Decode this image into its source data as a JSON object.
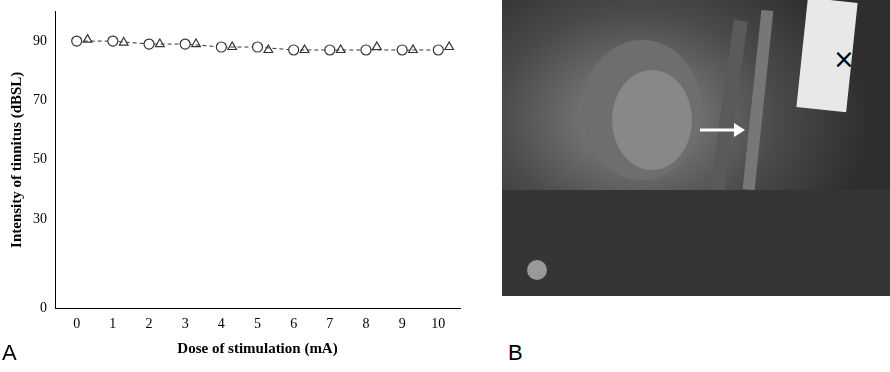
{
  "chart_data": {
    "type": "scatter",
    "panel_label": "A",
    "x_label": "Dose of stimulation (mA)",
    "y_label": "Intensity of tinnitus (dBSL)",
    "series": [
      {
        "marker": "circle",
        "line_style": "dashed",
        "color": "#333333",
        "x": [
          0,
          1,
          2,
          3,
          4,
          5,
          6,
          7,
          8,
          9,
          10
        ],
        "values": [
          90,
          90,
          89,
          89,
          88,
          88,
          87,
          87,
          87,
          87,
          87
        ]
      },
      {
        "marker": "triangle",
        "color": "#333333",
        "x": [
          0.3,
          1.3,
          2.3,
          3.3,
          4.3,
          5.3,
          6.3,
          7.3,
          8.3,
          9.3,
          10.3
        ],
        "values": [
          90.5,
          89.5,
          89,
          89,
          88,
          87,
          87,
          87,
          88,
          87,
          88
        ]
      }
    ],
    "xlim": [
      -0.6,
      10.6
    ],
    "xticks": [
      0,
      1,
      2,
      3,
      4,
      5,
      6,
      7,
      8,
      9,
      10
    ],
    "ylim": [
      0,
      100
    ],
    "yticks": [
      0,
      30,
      50,
      70,
      90
    ],
    "grid": false
  },
  "photo": {
    "panel_label": "B",
    "annotations": [
      "×"
    ]
  }
}
